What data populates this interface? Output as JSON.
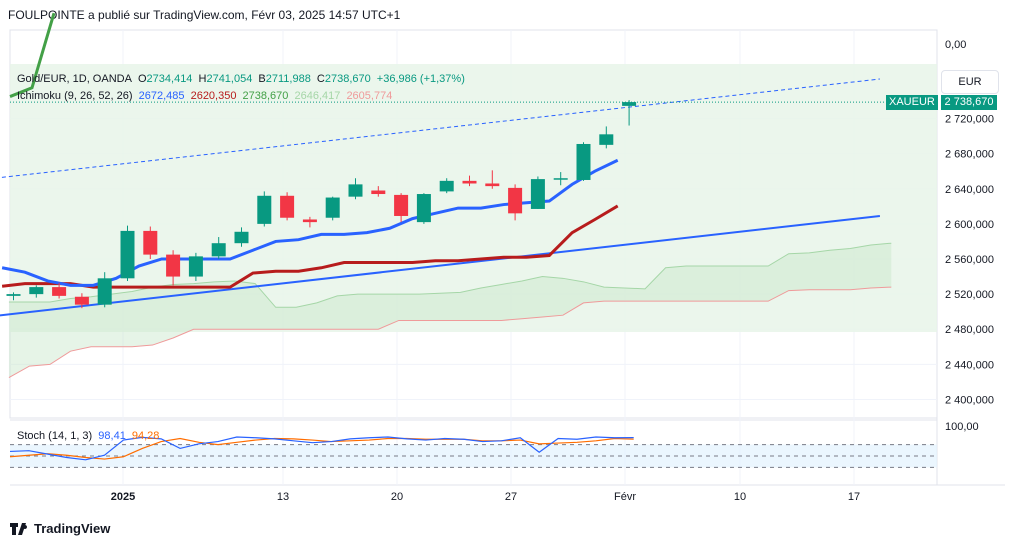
{
  "header": "FOULPOINTE a publié sur TradingView.com, Févr 03, 2025 14:57 UTC+1",
  "brand": "TradingView",
  "colors": {
    "up": "#089981",
    "down": "#f23645",
    "tenkan": "#2962ff",
    "kijun": "#b71c1c",
    "chikou": "#43a047",
    "trend": "#2962ff",
    "stochK": "#2962ff",
    "stochD": "#ff6d00"
  },
  "legend": {
    "symbol": "Gold/EUR, 1D, OANDA",
    "o_label": "O",
    "o": "2734,414",
    "h_label": "H",
    "h": "2741,054",
    "b_label": "B",
    "b": "2711,988",
    "c_label": "C",
    "c": "2738,670",
    "change": "+36,986 (+1,37%)",
    "ichimoku_label": "Ichimoku (9, 26, 52, 26)",
    "ichi1": "2672,485",
    "ichi2": "2620,350",
    "ichi3": "2738,670",
    "ichi4": "2646,417",
    "ichi5": "2605,774",
    "stoch_label": "Stoch (14, 1, 3)",
    "stoch_k": "98,41",
    "stoch_d": "94,28"
  },
  "currency": "EUR",
  "price_tag": {
    "symbol": "XAUEUR",
    "value": "2 738,670"
  },
  "chart_data": {
    "type": "candlestick",
    "y_ticks": [
      "0,00",
      "2 720,000",
      "2 680,000",
      "2 640,000",
      "2 600,000",
      "2 560,000",
      "2 520,000",
      "2 480,000",
      "2 440,000",
      "2 400,000"
    ],
    "x_ticks": [
      "2025",
      "13",
      "20",
      "27",
      "Févr",
      "10",
      "17"
    ],
    "stoch_ticks": [
      "100,00"
    ],
    "candles": [
      {
        "o": 2518,
        "h": 2522,
        "l": 2513,
        "c": 2520
      },
      {
        "o": 2520,
        "h": 2530,
        "l": 2516,
        "c": 2528
      },
      {
        "o": 2528,
        "h": 2533,
        "l": 2515,
        "c": 2518
      },
      {
        "o": 2517,
        "h": 2521,
        "l": 2504,
        "c": 2508
      },
      {
        "o": 2508,
        "h": 2545,
        "l": 2505,
        "c": 2538
      },
      {
        "o": 2538,
        "h": 2598,
        "l": 2535,
        "c": 2592
      },
      {
        "o": 2592,
        "h": 2597,
        "l": 2560,
        "c": 2565
      },
      {
        "o": 2565,
        "h": 2570,
        "l": 2530,
        "c": 2540
      },
      {
        "o": 2540,
        "h": 2567,
        "l": 2535,
        "c": 2563
      },
      {
        "o": 2563,
        "h": 2585,
        "l": 2560,
        "c": 2578
      },
      {
        "o": 2578,
        "h": 2596,
        "l": 2574,
        "c": 2591
      },
      {
        "o": 2600,
        "h": 2637,
        "l": 2597,
        "c": 2632
      },
      {
        "o": 2632,
        "h": 2636,
        "l": 2604,
        "c": 2607
      },
      {
        "o": 2605,
        "h": 2608,
        "l": 2596,
        "c": 2602
      },
      {
        "o": 2607,
        "h": 2631,
        "l": 2604,
        "c": 2630
      },
      {
        "o": 2631,
        "h": 2652,
        "l": 2628,
        "c": 2645
      },
      {
        "o": 2638,
        "h": 2643,
        "l": 2631,
        "c": 2634
      },
      {
        "o": 2633,
        "h": 2635,
        "l": 2602,
        "c": 2609
      },
      {
        "o": 2602,
        "h": 2635,
        "l": 2600,
        "c": 2634
      },
      {
        "o": 2637,
        "h": 2652,
        "l": 2635,
        "c": 2649
      },
      {
        "o": 2649,
        "h": 2655,
        "l": 2643,
        "c": 2646
      },
      {
        "o": 2646,
        "h": 2661,
        "l": 2640,
        "c": 2643
      },
      {
        "o": 2641,
        "h": 2645,
        "l": 2604,
        "c": 2612
      },
      {
        "o": 2617,
        "h": 2654,
        "l": 2617,
        "c": 2651
      },
      {
        "o": 2651,
        "h": 2659,
        "l": 2644,
        "c": 2652
      },
      {
        "o": 2650,
        "h": 2693,
        "l": 2649,
        "c": 2691
      },
      {
        "o": 2690,
        "h": 2711,
        "l": 2686,
        "c": 2702
      },
      {
        "o": 2734.4,
        "h": 2741,
        "l": 2712,
        "c": 2738.7
      }
    ],
    "tenkan": [
      2550,
      2545,
      2535,
      2530,
      2530,
      2538,
      2552,
      2560,
      2560,
      2560,
      2560,
      2570,
      2580,
      2582,
      2588,
      2588,
      2590,
      2595,
      2606,
      2612,
      2618,
      2618,
      2622,
      2624,
      2626,
      2645,
      2660,
      2672.5
    ],
    "kijun": [
      2529,
      2532,
      2532,
      2532,
      2528,
      2528,
      2528,
      2528,
      2528,
      2528,
      2528,
      2544,
      2546,
      2546,
      2550,
      2556,
      2556,
      2556,
      2556,
      2558,
      2558,
      2560,
      2562,
      2562,
      2564,
      2590,
      2605,
      2620.4
    ],
    "chikou": [
      2745,
      2755,
      2840
    ],
    "senkou_a": [
      2511,
      2511,
      2511,
      2515,
      2517,
      2520,
      2523,
      2528,
      2531,
      2532,
      2534,
      2535,
      2532,
      2505,
      2505,
      2510,
      2518,
      2520,
      2520,
      2520,
      2520,
      2521,
      2522,
      2527,
      2531,
      2535,
      2540,
      2538,
      2534,
      2528,
      2527,
      2526,
      2550,
      2552,
      2552,
      2552,
      2552,
      2552,
      2566,
      2567,
      2570,
      2572,
      2576,
      2578
    ],
    "senkou_b": [
      2425,
      2438,
      2440,
      2455,
      2460,
      2460,
      2460,
      2462,
      2470,
      2480,
      2480,
      2480,
      2480,
      2480,
      2480,
      2480,
      2480,
      2480,
      2480,
      2490,
      2490,
      2490,
      2490,
      2490,
      2490,
      2492,
      2494,
      2496,
      2510,
      2512,
      2512,
      2512,
      2512,
      2512,
      2512,
      2512,
      2512,
      2512,
      2524,
      2525,
      2525,
      2525,
      2527,
      2528
    ],
    "trendline_upper": {
      "from": {
        "x": -6,
        "y": 2637
      },
      "to": {
        "x": 38,
        "y": 2765
      }
    },
    "trendline_lower": {
      "from": {
        "x": -6,
        "y": 2480
      },
      "to": {
        "x": 38,
        "y": 2609
      }
    },
    "stoch_k": [
      62,
      64,
      55,
      46,
      40,
      52,
      92,
      99,
      95,
      70,
      82,
      88,
      100,
      98,
      95,
      90,
      85,
      88,
      95,
      98,
      100,
      95,
      92,
      96,
      94,
      88,
      90,
      98,
      60,
      96,
      94,
      100,
      98,
      98.4
    ],
    "stoch_d": [
      48,
      52,
      56,
      52,
      46,
      42,
      48,
      70,
      88,
      96,
      86,
      80,
      86,
      92,
      96,
      95,
      92,
      88,
      90,
      92,
      96,
      96,
      94,
      94,
      94,
      90,
      90,
      92,
      82,
      84,
      86,
      90,
      96,
      94.3
    ]
  }
}
